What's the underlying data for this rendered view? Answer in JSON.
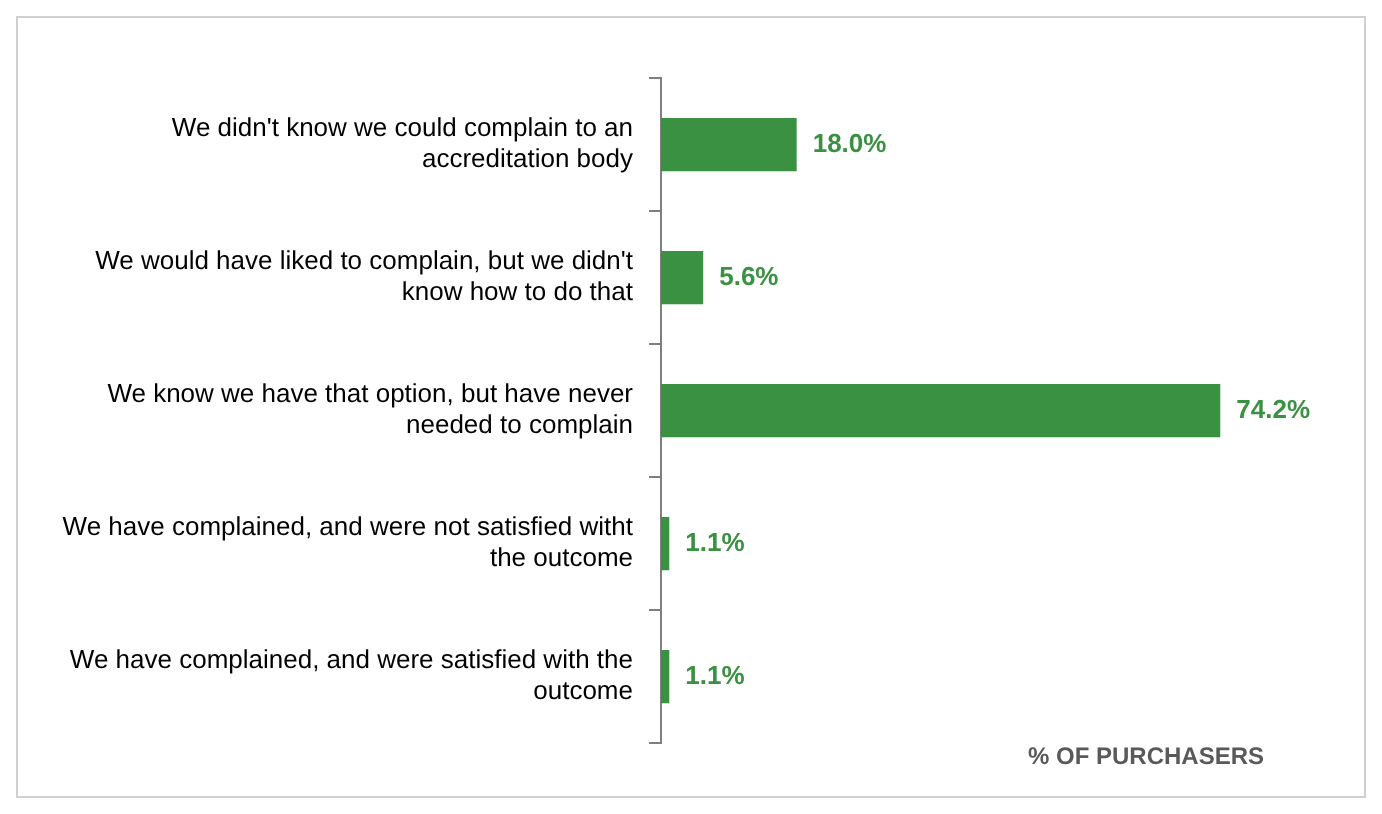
{
  "chart_data": {
    "type": "bar",
    "orientation": "horizontal",
    "xlabel": "% OF PURCHASERS",
    "categories": [
      "We didn't know we could complain to an accreditation body",
      "We would have liked to complain, but we didn't know how to do that",
      "We know we have that option, but have never needed to complain",
      "We have complained, and were not satisfied witht the outcome",
      "We have complained, and were satisfied with the outcome"
    ],
    "values": [
      18.0,
      5.6,
      74.2,
      1.1,
      1.1
    ],
    "value_labels": [
      "18.0%",
      "5.6%",
      "74.2%",
      "1.1%",
      "1.1%"
    ],
    "color": "#3a9142",
    "grid": false,
    "legend": false
  }
}
